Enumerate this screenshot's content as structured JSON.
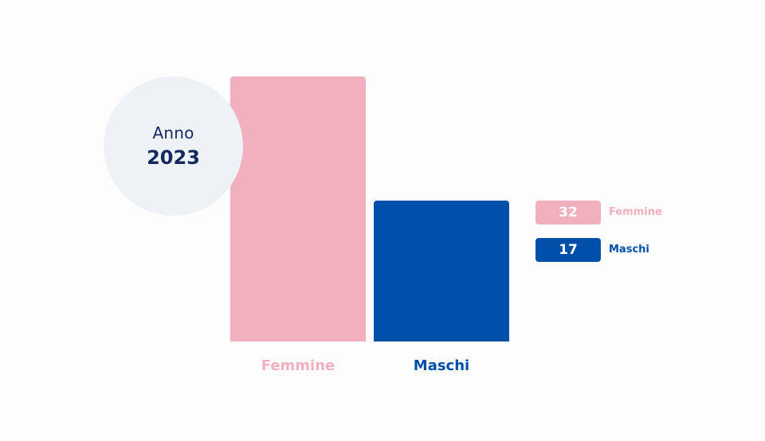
{
  "badge": {
    "label": "Anno",
    "year": "2023"
  },
  "colors": {
    "femmine": "#f0b0be",
    "maschi": "#0050aa",
    "badge_bg": "#eef2f6",
    "badge_text": "#14285f"
  },
  "chart_data": {
    "type": "bar",
    "categories": [
      "Femmine",
      "Maschi"
    ],
    "values": [
      32,
      17
    ],
    "ylim": [
      0,
      32
    ],
    "grid": false,
    "legend_position": "right",
    "legend": [
      {
        "value": "32",
        "name": "Femmine"
      },
      {
        "value": "17",
        "name": "Maschi"
      }
    ]
  }
}
